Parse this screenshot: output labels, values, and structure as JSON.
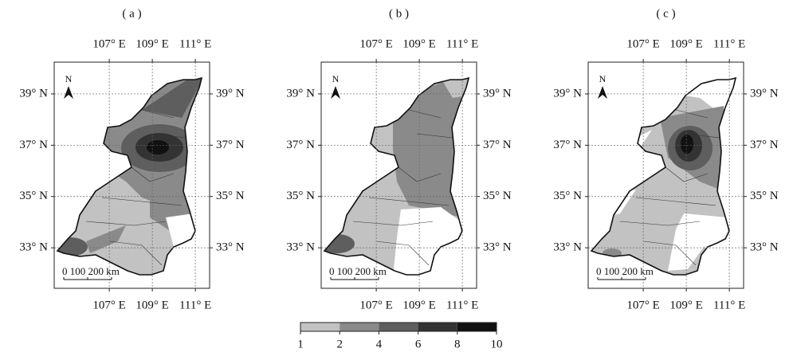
{
  "panels": [
    {
      "label": "( a )"
    },
    {
      "label": "( b )"
    },
    {
      "label": "( c )"
    }
  ],
  "lon_ticks": [
    {
      "value": 107,
      "label": "107° E"
    },
    {
      "value": 109,
      "label": "109° E"
    },
    {
      "value": 111,
      "label": "111° E"
    }
  ],
  "lat_ticks": [
    {
      "value": 39,
      "label": "39° N"
    },
    {
      "value": 37,
      "label": "37° N"
    },
    {
      "value": 35,
      "label": "35° N"
    },
    {
      "value": 33,
      "label": "33° N"
    }
  ],
  "north": "N",
  "scale_bar": "0  100 200 km",
  "colorbar": {
    "ticks": [
      1,
      2,
      4,
      6,
      8,
      10
    ],
    "colors": [
      "#c2c2c2",
      "#8a8a8a",
      "#5e5e5e",
      "#333333",
      "#111111"
    ]
  }
}
